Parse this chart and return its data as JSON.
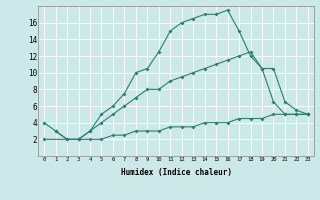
{
  "xlabel": "Humidex (Indice chaleur)",
  "ylabel": "",
  "bg_color": "#cde8e8",
  "line_color": "#2e7d6e",
  "grid_color": "#b8d8d8",
  "xlim": [
    -0.5,
    23.5
  ],
  "ylim": [
    0,
    18
  ],
  "xticks": [
    0,
    1,
    2,
    3,
    4,
    5,
    6,
    7,
    8,
    9,
    10,
    11,
    12,
    13,
    14,
    15,
    16,
    17,
    18,
    19,
    20,
    21,
    22,
    23
  ],
  "yticks": [
    2,
    4,
    6,
    8,
    10,
    12,
    14,
    16
  ],
  "line1_x": [
    1,
    2,
    3,
    4,
    5,
    6,
    7,
    8,
    9,
    10,
    11,
    12,
    13,
    14,
    15,
    16,
    17,
    18,
    19,
    20,
    21,
    22,
    23
  ],
  "line1_y": [
    3,
    2,
    2,
    3,
    5,
    6,
    7.5,
    10,
    10.5,
    12.5,
    15,
    16,
    16.5,
    17,
    17,
    17.5,
    15,
    12,
    10.5,
    6.5,
    5,
    5,
    5
  ],
  "line2_x": [
    0,
    1,
    2,
    3,
    4,
    5,
    6,
    7,
    8,
    9,
    10,
    11,
    12,
    13,
    14,
    15,
    16,
    17,
    18,
    19,
    20,
    21,
    22,
    23
  ],
  "line2_y": [
    4,
    3,
    2,
    2,
    3,
    4,
    5,
    6,
    7,
    8,
    8,
    9,
    9.5,
    10,
    10.5,
    11,
    11.5,
    12,
    12.5,
    10.5,
    10.5,
    6.5,
    5.5,
    5
  ],
  "line3_x": [
    0,
    3,
    4,
    5,
    6,
    7,
    8,
    9,
    10,
    11,
    12,
    13,
    14,
    15,
    16,
    17,
    18,
    19,
    20,
    21,
    22,
    23
  ],
  "line3_y": [
    2,
    2,
    2,
    2,
    2.5,
    2.5,
    3,
    3,
    3,
    3.5,
    3.5,
    3.5,
    4,
    4,
    4,
    4.5,
    4.5,
    4.5,
    5,
    5,
    5,
    5
  ]
}
